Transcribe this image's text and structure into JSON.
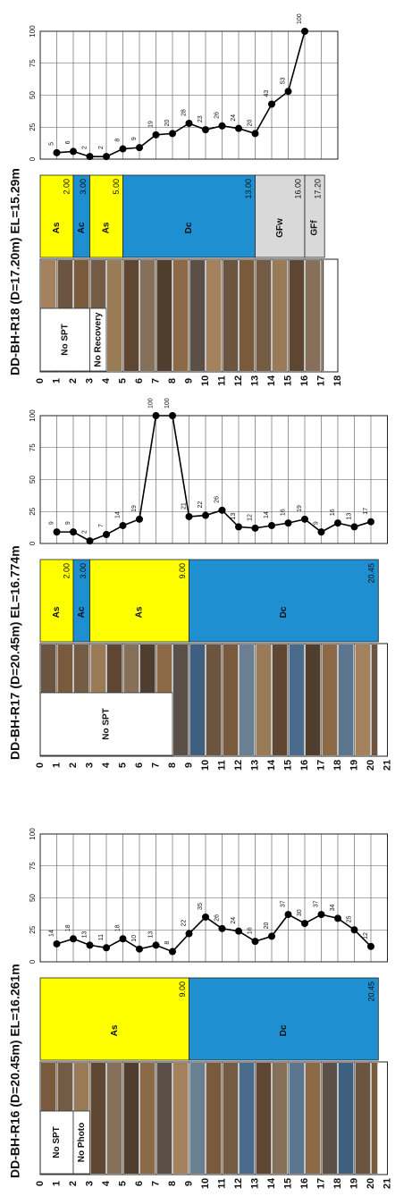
{
  "chart_data": [
    {
      "type": "line",
      "title": "DD-BH-R16 (D=20.45m) EL=16.261m",
      "xlim": [
        0,
        21
      ],
      "xticks": [
        0,
        1,
        2,
        3,
        4,
        5,
        6,
        7,
        8,
        9,
        10,
        11,
        12,
        13,
        14,
        15,
        16,
        17,
        18,
        19,
        20,
        21
      ],
      "ylim": [
        0,
        100
      ],
      "yticks": [
        0,
        25,
        50,
        75,
        100
      ],
      "x": [
        1,
        2,
        3,
        4,
        5,
        6,
        7,
        8,
        9,
        10,
        11,
        12,
        13,
        14,
        15,
        16,
        17,
        18,
        19,
        20
      ],
      "series": [
        {
          "color": "#000000",
          "values": [
            14,
            18,
            13,
            11,
            18,
            10,
            13,
            8,
            22,
            35,
            26,
            24,
            16,
            20,
            37,
            30,
            37,
            34,
            25,
            12
          ]
        }
      ],
      "units": [
        {
          "name": "As",
          "bottom": {
            "value": 9,
            "label": "9.00"
          },
          "color": "#ffff00"
        },
        {
          "name": "Dc",
          "bottom": {
            "value": 20.45,
            "label": "20.45"
          },
          "color": "#1e8fd0"
        }
      ],
      "notes": [
        {
          "text": "No SPT",
          "from": 0,
          "to": 2
        },
        {
          "text": "No Photo",
          "from": 2,
          "to": 3
        }
      ]
    },
    {
      "type": "line",
      "title": "DD-BH-R17 (D=20.45m) EL=16.774m",
      "xlim": [
        0,
        21
      ],
      "xticks": [
        0,
        1,
        2,
        3,
        4,
        5,
        6,
        7,
        8,
        9,
        10,
        11,
        12,
        13,
        14,
        15,
        16,
        17,
        18,
        19,
        20,
        21
      ],
      "ylim": [
        0,
        100
      ],
      "yticks": [
        0,
        25,
        50,
        75,
        100
      ],
      "x": [
        1,
        2,
        3,
        4,
        5,
        6,
        7,
        8,
        9,
        10,
        11,
        12,
        13,
        14,
        15,
        16,
        17,
        18,
        19,
        20
      ],
      "series": [
        {
          "color": "#000000",
          "values": [
            9,
            9,
            2,
            7,
            14,
            19,
            100,
            100,
            21,
            22,
            26,
            13,
            12,
            14,
            16,
            19,
            9,
            16,
            13,
            17
          ]
        }
      ],
      "units": [
        {
          "name": "As",
          "bottom": {
            "value": 2,
            "label": "2.00"
          },
          "color": "#ffff00"
        },
        {
          "name": "Ac",
          "bottom": {
            "value": 3,
            "label": "3.00"
          },
          "color": "#1e8fd0"
        },
        {
          "name": "As",
          "bottom": {
            "value": 9,
            "label": "9.00"
          },
          "color": "#ffff00"
        },
        {
          "name": "Dc",
          "bottom": {
            "value": 20.45,
            "label": "20.45"
          },
          "color": "#1e8fd0"
        }
      ],
      "notes": [
        {
          "text": "No SPT",
          "from": 0,
          "to": 8
        }
      ]
    },
    {
      "type": "line",
      "title": "DD-BH-R18 (D=17.20m) EL=15.29m",
      "xlim": [
        0,
        18
      ],
      "xticks": [
        0,
        1,
        2,
        3,
        4,
        5,
        6,
        7,
        8,
        9,
        10,
        11,
        12,
        13,
        14,
        15,
        16,
        17,
        18
      ],
      "ylim": [
        0,
        100
      ],
      "yticks": [
        0,
        25,
        50,
        75,
        100
      ],
      "x": [
        1,
        2,
        3,
        4,
        5,
        6,
        7,
        8,
        9,
        10,
        11,
        12,
        13,
        14,
        15,
        16
      ],
      "series": [
        {
          "color": "#000000",
          "values": [
            5,
            6,
            2,
            2,
            8,
            9,
            19,
            20,
            28,
            23,
            26,
            24,
            20,
            43,
            53,
            100
          ]
        }
      ],
      "units": [
        {
          "name": "As",
          "bottom": {
            "value": 2,
            "label": "2.00"
          },
          "color": "#ffff00"
        },
        {
          "name": "Ac",
          "bottom": {
            "value": 3,
            "label": "3.00"
          },
          "color": "#1e8fd0"
        },
        {
          "name": "As",
          "bottom": {
            "value": 5,
            "label": "5.00"
          },
          "color": "#ffff00"
        },
        {
          "name": "Dc",
          "bottom": {
            "value": 13,
            "label": "13.00"
          },
          "color": "#1e8fd0"
        },
        {
          "name": "GFw",
          "bottom": {
            "value": 16,
            "label": "16.00"
          },
          "color": "#d9d9d9"
        },
        {
          "name": "GFf",
          "bottom": {
            "value": 17.2,
            "label": "17.20"
          },
          "color": "#d9d9d9"
        }
      ],
      "notes": [
        {
          "text": "No SPT",
          "from": 0,
          "to": 3
        },
        {
          "text": "No Recovery",
          "from": 3,
          "to": 4
        }
      ]
    }
  ]
}
